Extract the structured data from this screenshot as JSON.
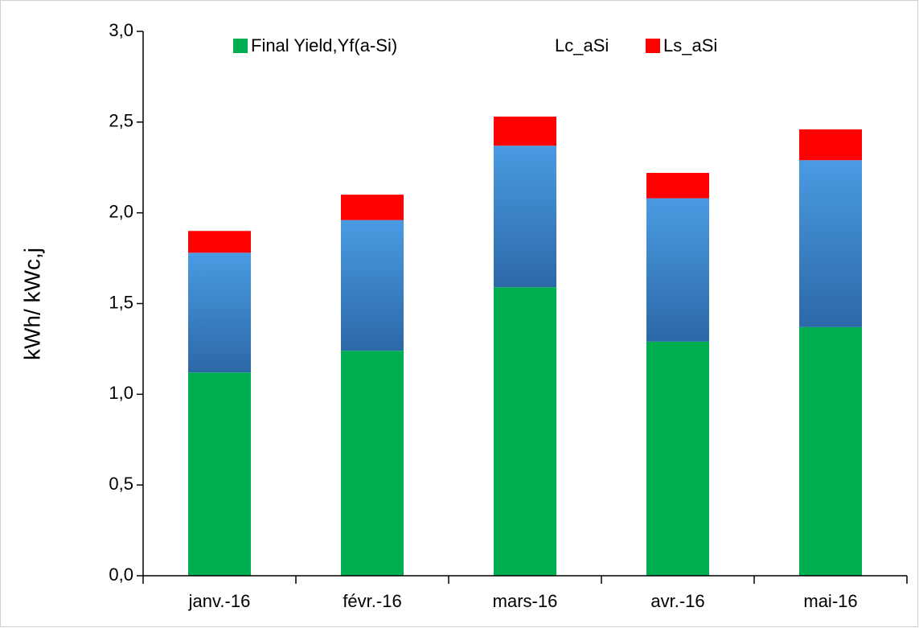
{
  "chart_data": {
    "type": "stacked_bar",
    "y_label": "kWh/ kWc,j",
    "categories": [
      "janv.-16",
      "févr.-16",
      "mars-16",
      "avr.-16",
      "mai-16"
    ],
    "series": [
      {
        "name": "Final Yield,Yf(a-Si)",
        "color": "#00b050",
        "values": [
          1.12,
          1.24,
          1.59,
          1.29,
          1.37
        ]
      },
      {
        "name": "Lc_aSi",
        "color": "#4a9be2",
        "values": [
          0.66,
          0.72,
          0.78,
          0.79,
          0.92
        ]
      },
      {
        "name": "Ls_aSi",
        "color": "#ff0000",
        "values": [
          0.12,
          0.14,
          0.16,
          0.14,
          0.17
        ]
      }
    ],
    "ylim": [
      0,
      3
    ],
    "yticks": [
      {
        "value": 0,
        "label": "0,0"
      },
      {
        "value": 0.5,
        "label": "0,5"
      },
      {
        "value": 1,
        "label": "1,0"
      },
      {
        "value": 1.5,
        "label": "1,5"
      },
      {
        "value": 2,
        "label": "2,0"
      },
      {
        "value": 2.5,
        "label": "2,5"
      },
      {
        "value": 3,
        "label": "3,0"
      }
    ],
    "legend": "top"
  }
}
